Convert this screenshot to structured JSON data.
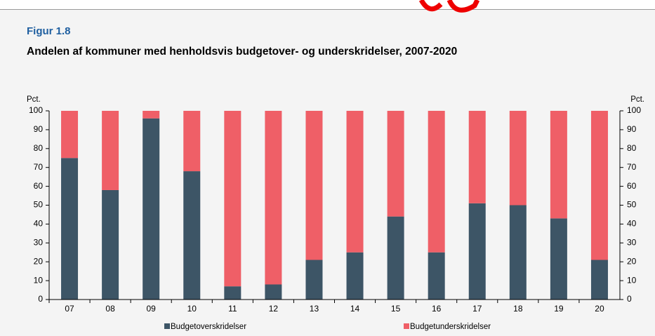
{
  "chart_data": {
    "type": "stacked_bar",
    "kicker": "Figur 1.8",
    "title": "Andelen af kommuner med henholdsvis budgetover- og underskridelser, 2007-2020",
    "y_label": "Pct.",
    "y2_label": "Pct.",
    "categories": [
      "07",
      "08",
      "09",
      "10",
      "11",
      "12",
      "13",
      "14",
      "15",
      "16",
      "17",
      "18",
      "19",
      "20"
    ],
    "series": [
      {
        "name": "Budgetoverskridelser",
        "color": "#3d5566",
        "values": [
          75,
          58,
          96,
          68,
          7,
          8,
          21,
          25,
          44,
          25,
          51,
          50,
          43,
          21
        ]
      },
      {
        "name": "Budgetunderskridelser",
        "color": "#ef5f67",
        "values": [
          25,
          42,
          4,
          32,
          93,
          92,
          79,
          75,
          56,
          75,
          49,
          50,
          57,
          79
        ]
      }
    ],
    "ylim": [
      0,
      100
    ],
    "yticks": [
      0,
      10,
      20,
      30,
      40,
      50,
      60,
      70,
      80,
      90,
      100
    ],
    "y2lim": [
      0,
      100
    ],
    "y2ticks": [
      0,
      10,
      20,
      30,
      40,
      50,
      60,
      70,
      80,
      90,
      100
    ],
    "legend": "bottom"
  }
}
